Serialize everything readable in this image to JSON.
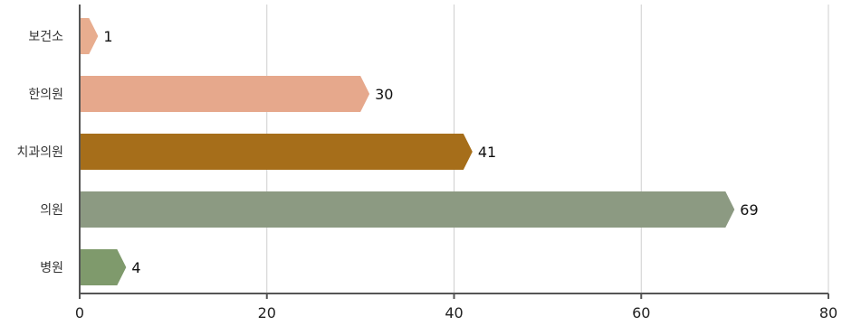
{
  "chart_data": {
    "type": "bar",
    "orientation": "horizontal",
    "categories": [
      "보건소",
      "한의원",
      "치과의원",
      "의원",
      "병원"
    ],
    "values": [
      1,
      30,
      41,
      69,
      4
    ],
    "value_labels": [
      "1",
      "30",
      "41",
      "69",
      "4"
    ],
    "bar_colors": [
      "#e8ad8f",
      "#e6a88c",
      "#a66e1a",
      "#8c9a82",
      "#7f9a6c"
    ],
    "xlim": [
      0,
      80
    ],
    "xticks": [
      0,
      20,
      40,
      60,
      80
    ],
    "xtick_labels": [
      "0",
      "20",
      "40",
      "60",
      "80"
    ],
    "grid": true,
    "gridline_color": "#cfcfcf",
    "axis_color": "#555555",
    "legend": "none"
  }
}
